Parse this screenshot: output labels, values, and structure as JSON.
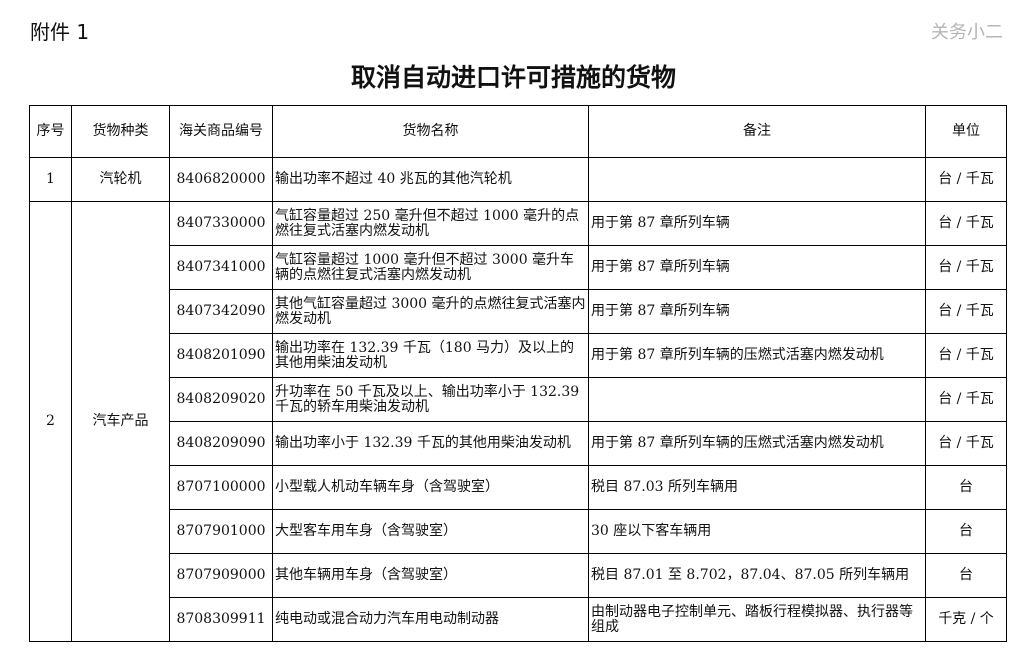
{
  "attachment_label": "附件 1",
  "title": "取消自动进口许可措施的货物",
  "table": {
    "headers": [
      "序号",
      "货物种类",
      "海关商品编号",
      "货物名称",
      "备注",
      "单位"
    ],
    "groups": [
      {
        "no": "1",
        "category": "汽轮机",
        "rows": [
          {
            "code": "8406820000",
            "name": "输出功率不超过 40 兆瓦的其他汽轮机",
            "note": "",
            "unit": "台 / 千瓦"
          }
        ]
      },
      {
        "no": "2",
        "category": "汽车产品",
        "rows": [
          {
            "code": "8407330000",
            "name": "气缸容量超过 250 毫升但不超过 1000 毫升的点燃往复式活塞内燃发动机",
            "note": "用于第 87 章所列车辆",
            "unit": "台 / 千瓦"
          },
          {
            "code": "8407341000",
            "name": "气缸容量超过 1000 毫升但不超过 3000 毫升车辆的点燃往复式活塞内燃发动机",
            "note": "用于第 87 章所列车辆",
            "unit": "台 / 千瓦"
          },
          {
            "code": "8407342090",
            "name": "其他气缸容量超过 3000 毫升的点燃往复式活塞内燃发动机",
            "note": "用于第 87 章所列车辆",
            "unit": "台 / 千瓦"
          },
          {
            "code": "8408201090",
            "name": "输出功率在 132.39 千瓦（180 马力）及以上的其他用柴油发动机",
            "note": "用于第 87 章所列车辆的压燃式活塞内燃发动机",
            "unit": "台 / 千瓦"
          },
          {
            "code": "8408209020",
            "name": "升功率在 50 千瓦及以上、输出功率小于 132.39 千瓦的轿车用柴油发动机",
            "note": "",
            "unit": "台 / 千瓦"
          },
          {
            "code": "8408209090",
            "name": "输出功率小于 132.39 千瓦的其他用柴油发动机",
            "note": "用于第 87 章所列车辆的压燃式活塞内燃发动机",
            "unit": "台 / 千瓦"
          },
          {
            "code": "8707100000",
            "name": "小型载人机动车辆车身（含驾驶室）",
            "note": "税目 87.03 所列车辆用",
            "unit": "台"
          },
          {
            "code": "8707901000",
            "name": "大型客车用车身（含驾驶室）",
            "note": "30 座以下客车辆用",
            "unit": "台"
          },
          {
            "code": "8707909000",
            "name": "其他车辆用车身（含驾驶室）",
            "note": "税目 87.01 至 8.702，87.04、87.05 所列车辆用",
            "unit": "台"
          },
          {
            "code": "8708309911",
            "name": "纯电动或混合动力汽车用电动制动器",
            "note": "由制动器电子控制单元、踏板行程模拟器、执行器等组成",
            "unit": "千克 / 个"
          }
        ]
      }
    ]
  },
  "watermark": "关务小二"
}
